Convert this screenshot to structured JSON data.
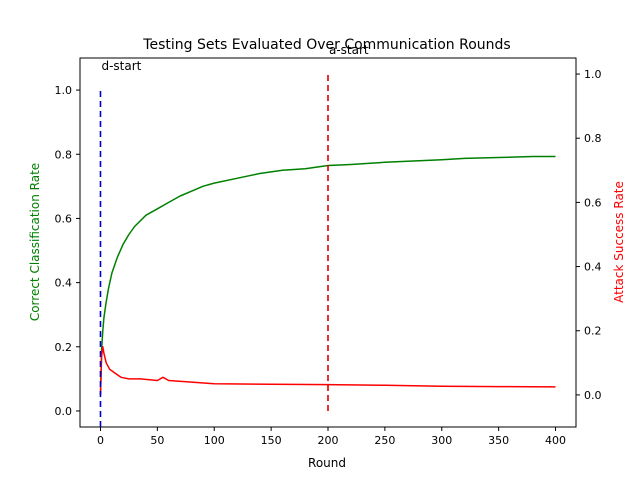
{
  "chart_data": {
    "type": "line",
    "title": "Testing Sets Evaluated Over Communication Rounds",
    "xlabel": "Round",
    "ylabel_left": "Correct Classification Rate",
    "ylabel_right": "Attack Success Rate",
    "xlim": [
      -18,
      418
    ],
    "ylim_left": [
      -0.05,
      1.1
    ],
    "ylim_right": [
      -0.1,
      1.05
    ],
    "x_ticks": [
      0,
      50,
      100,
      150,
      200,
      250,
      300,
      350,
      400
    ],
    "y_ticks_left": [
      0.0,
      0.2,
      0.4,
      0.6,
      0.8,
      1.0
    ],
    "y_ticks_right": [
      0.0,
      0.2,
      0.4,
      0.6,
      0.8,
      1.0
    ],
    "grid": false,
    "colors": {
      "left_axis_label": "#008000",
      "right_axis_label": "#ff0000",
      "d_start_line": "#0000cc",
      "a_start_line": "#dd0000"
    },
    "series": [
      {
        "name": "Correct Classification Rate",
        "axis": "left",
        "color": "#008000",
        "points": [
          [
            0,
            0.05
          ],
          [
            1,
            0.19
          ],
          [
            2,
            0.25
          ],
          [
            3,
            0.29
          ],
          [
            5,
            0.34
          ],
          [
            7,
            0.38
          ],
          [
            10,
            0.43
          ],
          [
            15,
            0.48
          ],
          [
            20,
            0.52
          ],
          [
            25,
            0.55
          ],
          [
            30,
            0.575
          ],
          [
            40,
            0.61
          ],
          [
            50,
            0.63
          ],
          [
            60,
            0.65
          ],
          [
            70,
            0.67
          ],
          [
            80,
            0.685
          ],
          [
            90,
            0.7
          ],
          [
            100,
            0.71
          ],
          [
            120,
            0.725
          ],
          [
            140,
            0.74
          ],
          [
            160,
            0.75
          ],
          [
            180,
            0.755
          ],
          [
            200,
            0.765
          ],
          [
            220,
            0.768
          ],
          [
            250,
            0.775
          ],
          [
            280,
            0.78
          ],
          [
            300,
            0.783
          ],
          [
            320,
            0.787
          ],
          [
            350,
            0.79
          ],
          [
            380,
            0.793
          ],
          [
            400,
            0.793
          ]
        ]
      },
      {
        "name": "Attack Success Rate",
        "axis": "right",
        "color": "#ff0000",
        "points": [
          [
            0,
            0.0
          ],
          [
            1,
            0.12
          ],
          [
            2,
            0.15
          ],
          [
            3,
            0.13
          ],
          [
            5,
            0.1
          ],
          [
            8,
            0.08
          ],
          [
            12,
            0.07
          ],
          [
            18,
            0.055
          ],
          [
            25,
            0.05
          ],
          [
            35,
            0.05
          ],
          [
            50,
            0.045
          ],
          [
            55,
            0.055
          ],
          [
            60,
            0.045
          ],
          [
            80,
            0.04
          ],
          [
            100,
            0.035
          ],
          [
            150,
            0.033
          ],
          [
            200,
            0.032
          ],
          [
            250,
            0.03
          ],
          [
            300,
            0.027
          ],
          [
            350,
            0.026
          ],
          [
            400,
            0.025
          ]
        ]
      }
    ],
    "markers": [
      {
        "label": "d-start",
        "x": 0,
        "axis": "left",
        "y_from": -0.05,
        "y_to": 1.0,
        "color": "#0000cc"
      },
      {
        "label": "a-start",
        "x": 200,
        "axis": "right",
        "y_from": -0.05,
        "y_to": 1.0,
        "color": "#dd0000"
      }
    ]
  }
}
